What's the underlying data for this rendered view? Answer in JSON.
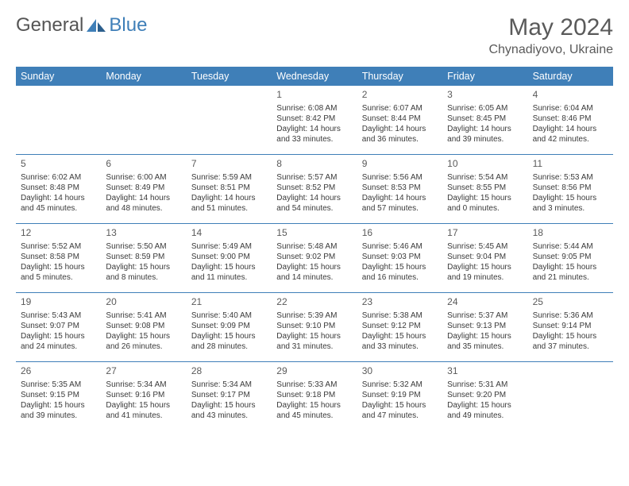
{
  "logo": {
    "text1": "General",
    "text2": "Blue"
  },
  "title": "May 2024",
  "location": "Chynadiyovo, Ukraine",
  "colors": {
    "brand": "#3f7fb8",
    "header_text": "#ffffff",
    "body_text": "#3a3a3a",
    "title_text": "#5a5a5a",
    "background": "#ffffff",
    "row_divider": "#3f7fb8"
  },
  "typography": {
    "title_fontsize": 30,
    "location_fontsize": 16,
    "dayheader_fontsize": 12.5,
    "daynum_fontsize": 12,
    "cell_fontsize": 10
  },
  "day_names": [
    "Sunday",
    "Monday",
    "Tuesday",
    "Wednesday",
    "Thursday",
    "Friday",
    "Saturday"
  ],
  "weeks": [
    [
      {
        "n": "",
        "sr": "",
        "ss": "",
        "dl": ""
      },
      {
        "n": "",
        "sr": "",
        "ss": "",
        "dl": ""
      },
      {
        "n": "",
        "sr": "",
        "ss": "",
        "dl": ""
      },
      {
        "n": "1",
        "sr": "Sunrise: 6:08 AM",
        "ss": "Sunset: 8:42 PM",
        "dl": "Daylight: 14 hours and 33 minutes."
      },
      {
        "n": "2",
        "sr": "Sunrise: 6:07 AM",
        "ss": "Sunset: 8:44 PM",
        "dl": "Daylight: 14 hours and 36 minutes."
      },
      {
        "n": "3",
        "sr": "Sunrise: 6:05 AM",
        "ss": "Sunset: 8:45 PM",
        "dl": "Daylight: 14 hours and 39 minutes."
      },
      {
        "n": "4",
        "sr": "Sunrise: 6:04 AM",
        "ss": "Sunset: 8:46 PM",
        "dl": "Daylight: 14 hours and 42 minutes."
      }
    ],
    [
      {
        "n": "5",
        "sr": "Sunrise: 6:02 AM",
        "ss": "Sunset: 8:48 PM",
        "dl": "Daylight: 14 hours and 45 minutes."
      },
      {
        "n": "6",
        "sr": "Sunrise: 6:00 AM",
        "ss": "Sunset: 8:49 PM",
        "dl": "Daylight: 14 hours and 48 minutes."
      },
      {
        "n": "7",
        "sr": "Sunrise: 5:59 AM",
        "ss": "Sunset: 8:51 PM",
        "dl": "Daylight: 14 hours and 51 minutes."
      },
      {
        "n": "8",
        "sr": "Sunrise: 5:57 AM",
        "ss": "Sunset: 8:52 PM",
        "dl": "Daylight: 14 hours and 54 minutes."
      },
      {
        "n": "9",
        "sr": "Sunrise: 5:56 AM",
        "ss": "Sunset: 8:53 PM",
        "dl": "Daylight: 14 hours and 57 minutes."
      },
      {
        "n": "10",
        "sr": "Sunrise: 5:54 AM",
        "ss": "Sunset: 8:55 PM",
        "dl": "Daylight: 15 hours and 0 minutes."
      },
      {
        "n": "11",
        "sr": "Sunrise: 5:53 AM",
        "ss": "Sunset: 8:56 PM",
        "dl": "Daylight: 15 hours and 3 minutes."
      }
    ],
    [
      {
        "n": "12",
        "sr": "Sunrise: 5:52 AM",
        "ss": "Sunset: 8:58 PM",
        "dl": "Daylight: 15 hours and 5 minutes."
      },
      {
        "n": "13",
        "sr": "Sunrise: 5:50 AM",
        "ss": "Sunset: 8:59 PM",
        "dl": "Daylight: 15 hours and 8 minutes."
      },
      {
        "n": "14",
        "sr": "Sunrise: 5:49 AM",
        "ss": "Sunset: 9:00 PM",
        "dl": "Daylight: 15 hours and 11 minutes."
      },
      {
        "n": "15",
        "sr": "Sunrise: 5:48 AM",
        "ss": "Sunset: 9:02 PM",
        "dl": "Daylight: 15 hours and 14 minutes."
      },
      {
        "n": "16",
        "sr": "Sunrise: 5:46 AM",
        "ss": "Sunset: 9:03 PM",
        "dl": "Daylight: 15 hours and 16 minutes."
      },
      {
        "n": "17",
        "sr": "Sunrise: 5:45 AM",
        "ss": "Sunset: 9:04 PM",
        "dl": "Daylight: 15 hours and 19 minutes."
      },
      {
        "n": "18",
        "sr": "Sunrise: 5:44 AM",
        "ss": "Sunset: 9:05 PM",
        "dl": "Daylight: 15 hours and 21 minutes."
      }
    ],
    [
      {
        "n": "19",
        "sr": "Sunrise: 5:43 AM",
        "ss": "Sunset: 9:07 PM",
        "dl": "Daylight: 15 hours and 24 minutes."
      },
      {
        "n": "20",
        "sr": "Sunrise: 5:41 AM",
        "ss": "Sunset: 9:08 PM",
        "dl": "Daylight: 15 hours and 26 minutes."
      },
      {
        "n": "21",
        "sr": "Sunrise: 5:40 AM",
        "ss": "Sunset: 9:09 PM",
        "dl": "Daylight: 15 hours and 28 minutes."
      },
      {
        "n": "22",
        "sr": "Sunrise: 5:39 AM",
        "ss": "Sunset: 9:10 PM",
        "dl": "Daylight: 15 hours and 31 minutes."
      },
      {
        "n": "23",
        "sr": "Sunrise: 5:38 AM",
        "ss": "Sunset: 9:12 PM",
        "dl": "Daylight: 15 hours and 33 minutes."
      },
      {
        "n": "24",
        "sr": "Sunrise: 5:37 AM",
        "ss": "Sunset: 9:13 PM",
        "dl": "Daylight: 15 hours and 35 minutes."
      },
      {
        "n": "25",
        "sr": "Sunrise: 5:36 AM",
        "ss": "Sunset: 9:14 PM",
        "dl": "Daylight: 15 hours and 37 minutes."
      }
    ],
    [
      {
        "n": "26",
        "sr": "Sunrise: 5:35 AM",
        "ss": "Sunset: 9:15 PM",
        "dl": "Daylight: 15 hours and 39 minutes."
      },
      {
        "n": "27",
        "sr": "Sunrise: 5:34 AM",
        "ss": "Sunset: 9:16 PM",
        "dl": "Daylight: 15 hours and 41 minutes."
      },
      {
        "n": "28",
        "sr": "Sunrise: 5:34 AM",
        "ss": "Sunset: 9:17 PM",
        "dl": "Daylight: 15 hours and 43 minutes."
      },
      {
        "n": "29",
        "sr": "Sunrise: 5:33 AM",
        "ss": "Sunset: 9:18 PM",
        "dl": "Daylight: 15 hours and 45 minutes."
      },
      {
        "n": "30",
        "sr": "Sunrise: 5:32 AM",
        "ss": "Sunset: 9:19 PM",
        "dl": "Daylight: 15 hours and 47 minutes."
      },
      {
        "n": "31",
        "sr": "Sunrise: 5:31 AM",
        "ss": "Sunset: 9:20 PM",
        "dl": "Daylight: 15 hours and 49 minutes."
      },
      {
        "n": "",
        "sr": "",
        "ss": "",
        "dl": ""
      }
    ]
  ]
}
